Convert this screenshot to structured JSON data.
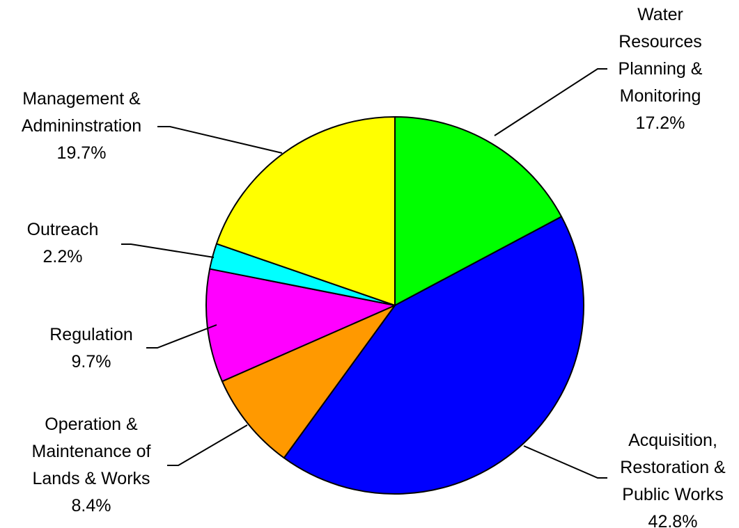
{
  "chart_data": {
    "type": "pie",
    "title": "",
    "slices": [
      {
        "label_lines": [
          "Water",
          "Resources",
          "Planning &",
          "Monitoring"
        ],
        "percent_label": "17.2%",
        "value": 17.2,
        "color": "#00FF00"
      },
      {
        "label_lines": [
          "Acquisition,",
          "Restoration &",
          "Public Works"
        ],
        "percent_label": "42.8%",
        "value": 42.8,
        "color": "#0000FF"
      },
      {
        "label_lines": [
          "Operation &",
          "Maintenance of",
          "Lands & Works"
        ],
        "percent_label": "8.4%",
        "value": 8.4,
        "color": "#FF9900"
      },
      {
        "label_lines": [
          "Regulation"
        ],
        "percent_label": "9.7%",
        "value": 9.7,
        "color": "#FF00FF"
      },
      {
        "label_lines": [
          "Outreach"
        ],
        "percent_label": "2.2%",
        "value": 2.2,
        "color": "#00FFFF"
      },
      {
        "label_lines": [
          "Management &",
          "Admininstration"
        ],
        "percent_label": "19.7%",
        "value": 19.7,
        "color": "#FFFF00"
      }
    ]
  }
}
